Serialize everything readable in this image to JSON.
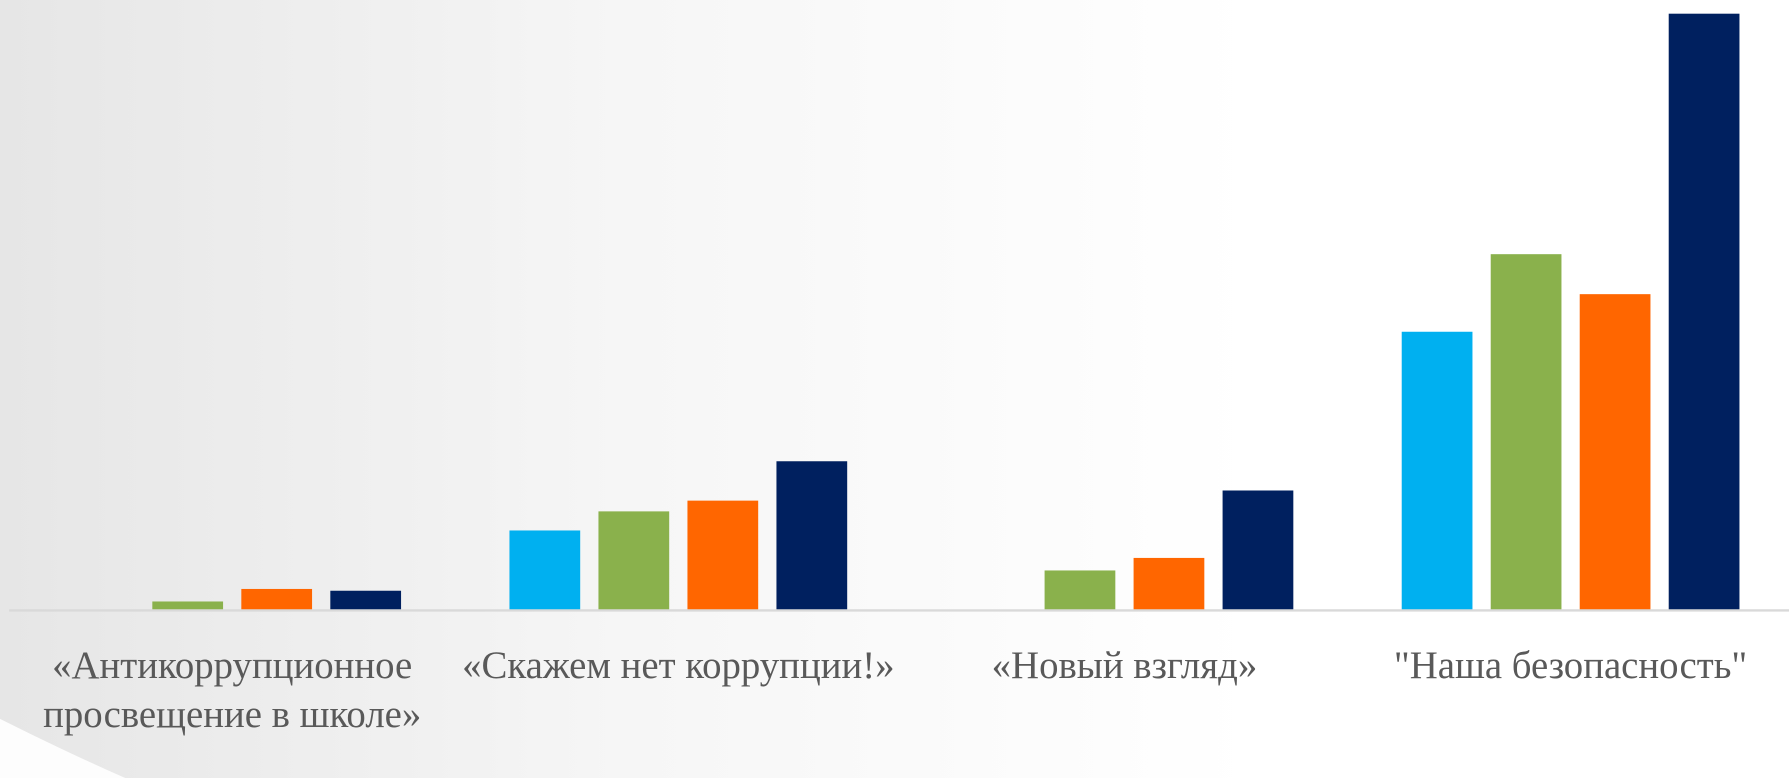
{
  "chart_data": {
    "type": "bar",
    "categories": [
      "«Антикоррупционное просвещение в школе»",
      "«Скажем нет коррупции!»",
      "«Новый взгляд»",
      "\"Наша безопасность\""
    ],
    "series": [
      {
        "color": "#00b0f0",
        "values": [
          0,
          13.4,
          0,
          46.7
        ]
      },
      {
        "color": "#8ab14c",
        "values": [
          1.5,
          16.6,
          6.7,
          59.7
        ]
      },
      {
        "color": "#ff6600",
        "values": [
          3.6,
          18.4,
          8.8,
          53
        ]
      },
      {
        "color": "#00205f",
        "values": [
          3.3,
          25,
          20.1,
          100
        ]
      }
    ],
    "ylim": [
      0,
      100
    ]
  }
}
